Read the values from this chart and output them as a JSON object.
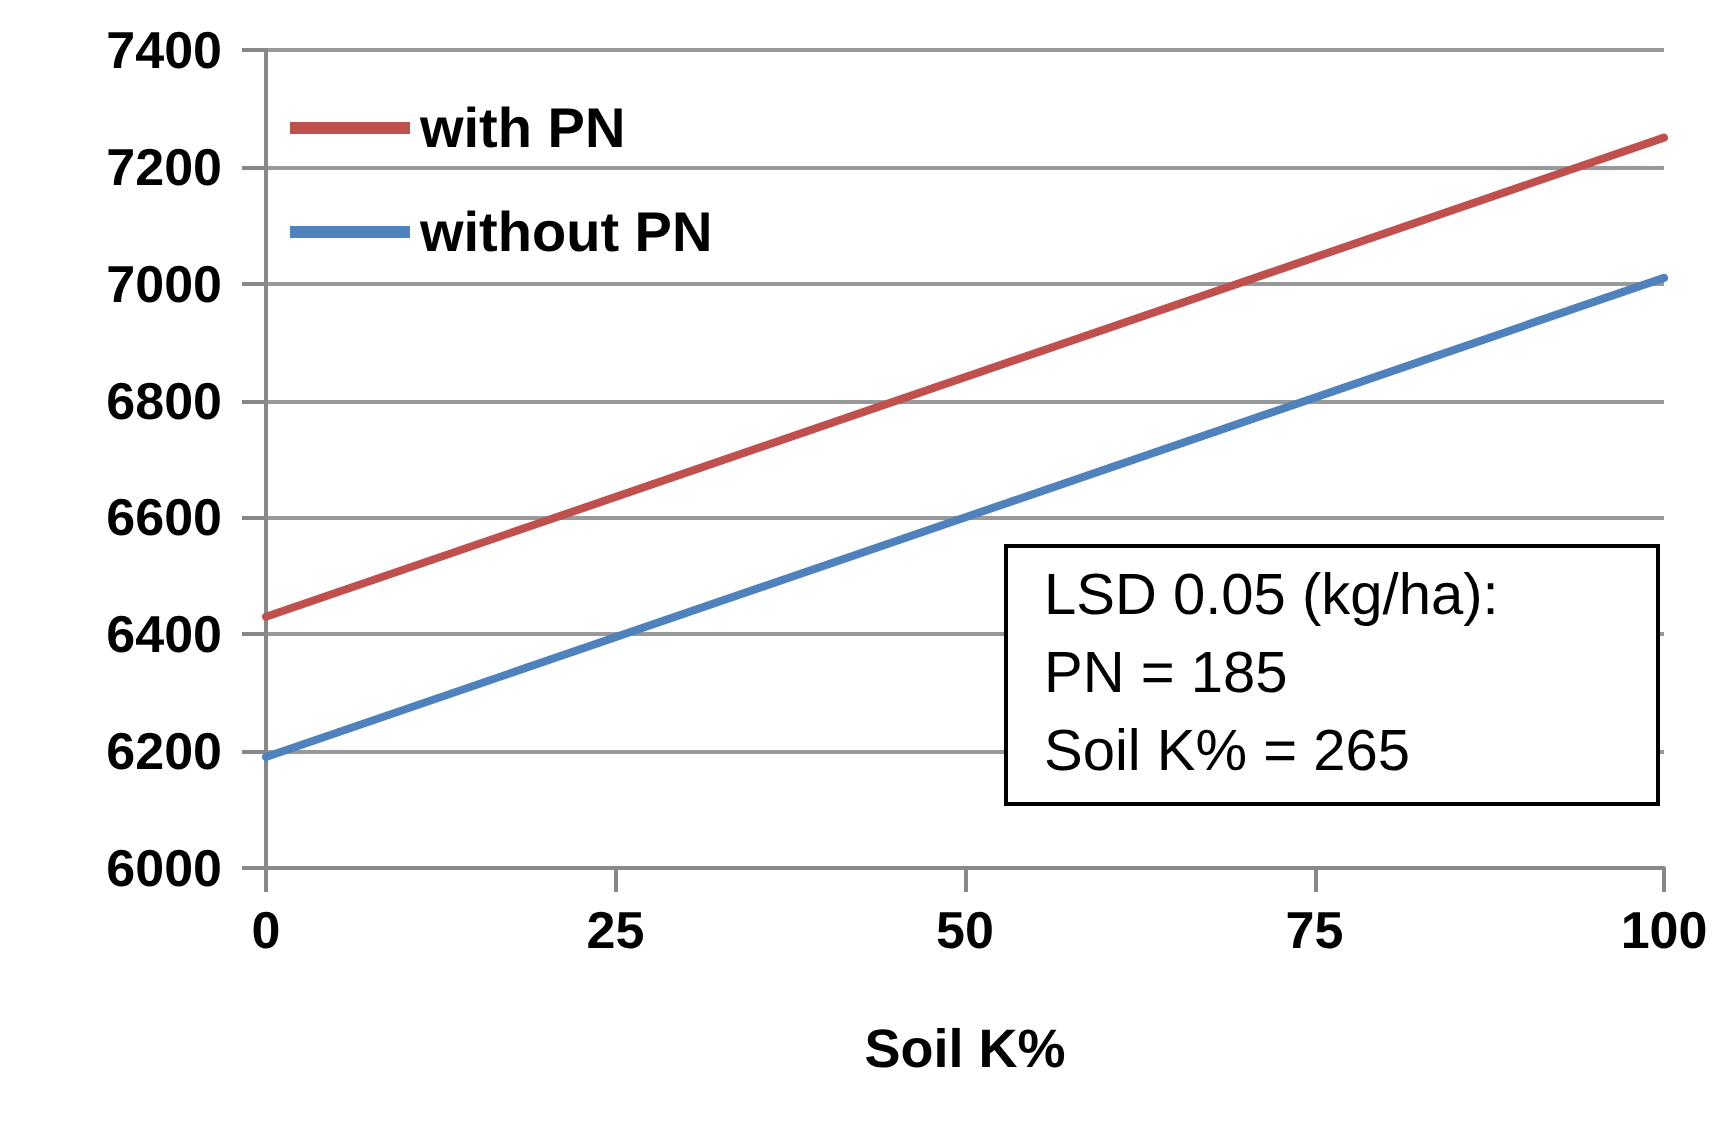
{
  "chart_data": {
    "type": "line",
    "xlabel": "Soil K%",
    "x": [
      0,
      100
    ],
    "series": [
      {
        "name": "with PN",
        "color": "#c0504d",
        "values": [
          6430,
          7250
        ]
      },
      {
        "name": "without PN",
        "color": "#4f81bd",
        "values": [
          6190,
          7010
        ]
      }
    ],
    "xlim": [
      0,
      100
    ],
    "xticks": [
      0,
      25,
      50,
      75,
      100
    ],
    "ylim": [
      6000,
      7400
    ],
    "yticks": [
      6000,
      6200,
      6400,
      6600,
      6800,
      7000,
      7200,
      7400
    ],
    "grid": "y",
    "legend": "top left",
    "marker": "none",
    "line_style": "solid",
    "annotations": [
      "LSD 0.05 (kg/ha):",
      "PN = 185",
      "Soil K% = 265"
    ]
  }
}
